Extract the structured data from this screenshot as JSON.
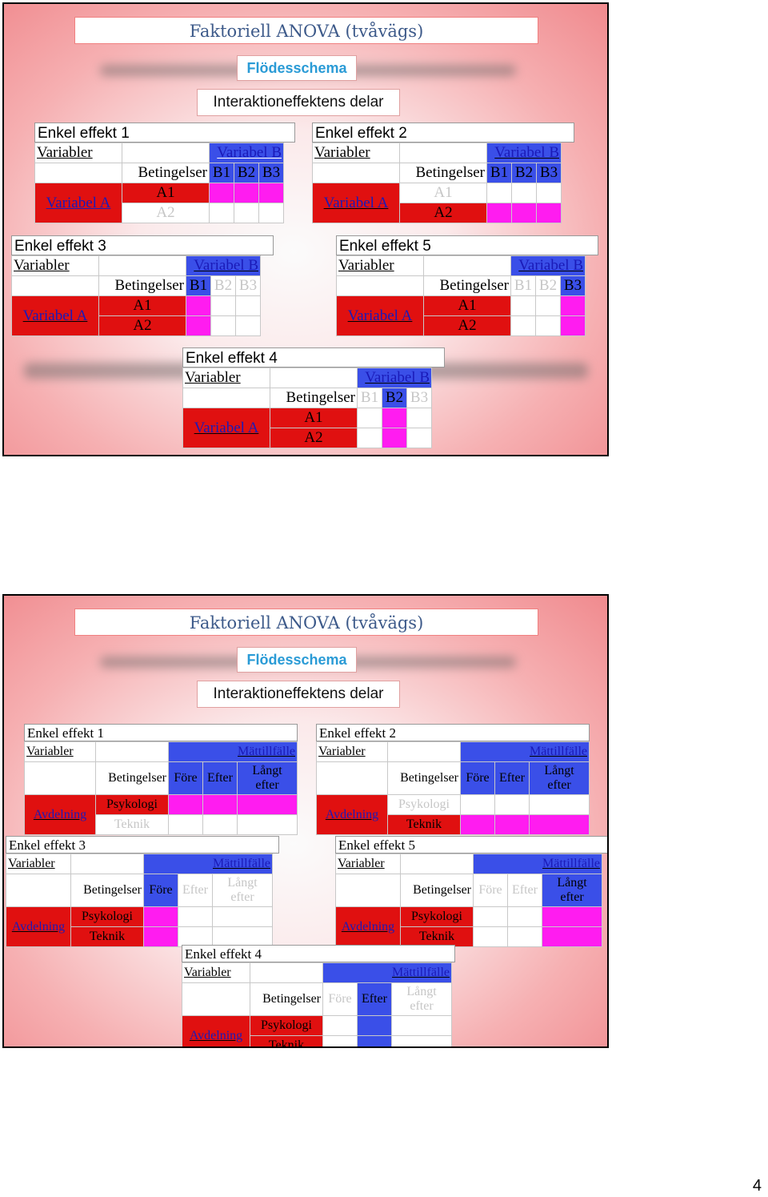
{
  "colors": {
    "red_cell": "#e01010",
    "blue_cell": "#3a4fe8",
    "magenta_cell": "#ff1cf0",
    "title_color": "#3d5a8a",
    "flow_color": "#2a9bd6"
  },
  "slide1": {
    "title": "Faktoriell ANOVA (tvåvägs)",
    "flow": "Flödesschema",
    "inter": "Interaktioneffektens delar",
    "labels": {
      "variabler": "Variabler",
      "varB": "Variabel B",
      "betingelser": "Betingelser",
      "varA": "Variabel A",
      "b1": "B1",
      "b2": "B2",
      "b3": "B3",
      "a1": "A1",
      "a2": "A2"
    },
    "e1": "Enkel effekt 1",
    "e2": "Enkel effekt 2",
    "e3": "Enkel effekt 3",
    "e4": "Enkel effekt 4",
    "e5": "Enkel effekt 5"
  },
  "slide2": {
    "title": "Faktoriell ANOVA (tvåvägs)",
    "flow": "Flödesschema",
    "inter": "Interaktioneffektens delar",
    "labels": {
      "variabler": "Variabler",
      "mf": "Mättillfälle",
      "betingelser": "Betingelser",
      "fore": "Före",
      "efter": "Efter",
      "langt": "Långt",
      "langt2": "efter",
      "avd": "Avdelning",
      "psyk": "Psykologi",
      "tek": "Teknik"
    },
    "e1": "Enkel effekt 1",
    "e2": "Enkel effekt 2",
    "e3": "Enkel effekt 3",
    "e4": "Enkel effekt 4",
    "e5": "Enkel effekt 5"
  },
  "page_number": "4"
}
